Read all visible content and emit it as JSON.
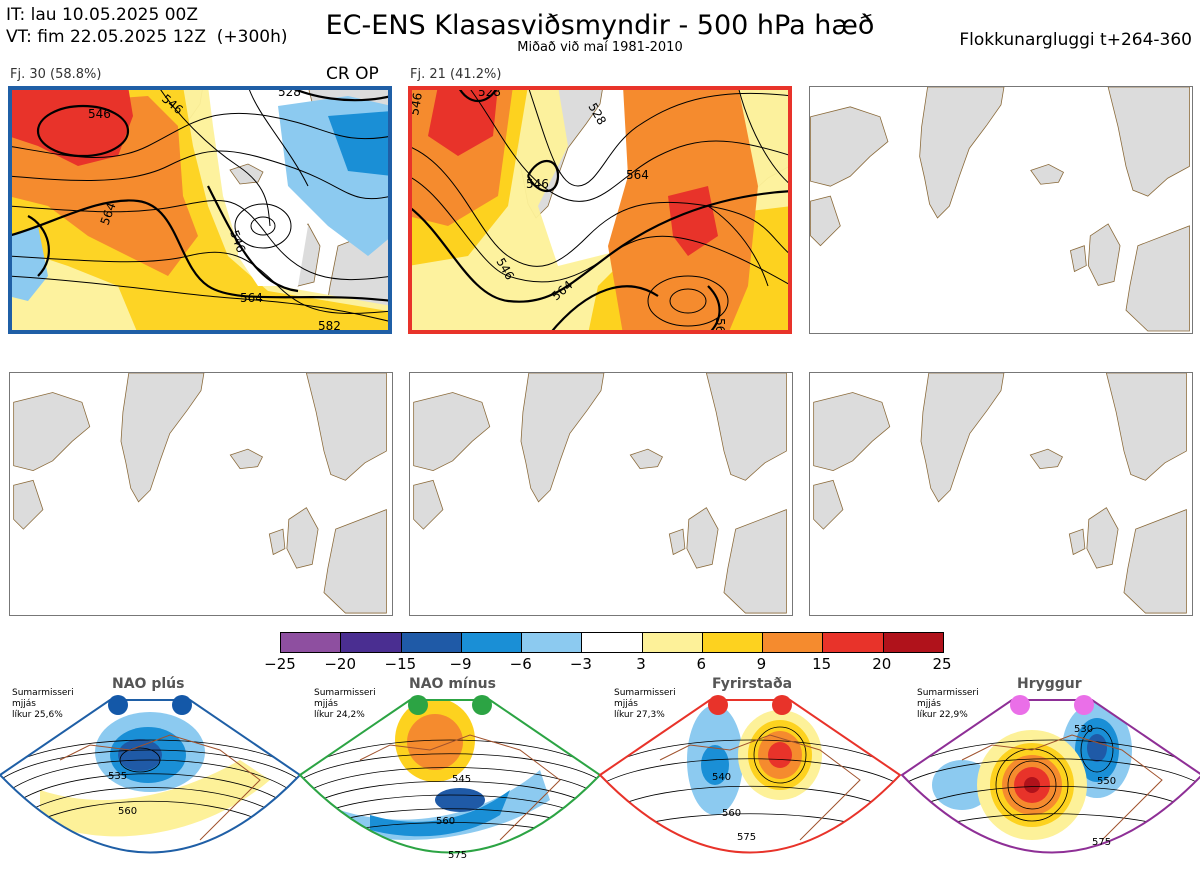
{
  "header": {
    "it_line": "IT: lau 10.05.2025 00Z",
    "vt_line": "VT: fim 22.05.2025 12Z  (+300h)",
    "title": "EC-ENS Klasasviðsmyndir - 500 hPa hæð",
    "subtitle": "Miðað við maí 1981-2010",
    "window": "Flokkunargluggi t+264-360"
  },
  "panels": [
    {
      "label": "Fj. 30 (58.8%)",
      "badge": "CR OP",
      "border": "#1f5fa6",
      "contours": [
        "546",
        "546",
        "528",
        "564",
        "546",
        "564",
        "582"
      ]
    },
    {
      "label": "Fj. 21 (41.2%)",
      "badge": "",
      "border": "#e8332a",
      "contours": [
        "546",
        "528",
        "528",
        "546",
        "564",
        "546",
        "564",
        "56"
      ]
    },
    {
      "label": "",
      "badge": "",
      "border": "",
      "contours": []
    },
    {
      "label": "",
      "badge": "",
      "border": "",
      "contours": []
    },
    {
      "label": "",
      "badge": "",
      "border": "",
      "contours": []
    },
    {
      "label": "",
      "badge": "",
      "border": "",
      "contours": []
    }
  ],
  "colorbar": {
    "ticks": [
      "−25",
      "−20",
      "−15",
      "−9",
      "−6",
      "−3",
      "3",
      "6",
      "9",
      "15",
      "20",
      "25"
    ],
    "colors": [
      "#8e4fa0",
      "#4a2e91",
      "#1f5aa7",
      "#1a8fd6",
      "#8ccaf0",
      "#ffffff",
      "#fdf199",
      "#fdd21f",
      "#f58b2e",
      "#e8332a",
      "#b0121b"
    ]
  },
  "regimes": [
    {
      "title": "NAO plús",
      "note": "Sumarmisseri\nmjjás\nlíkur 25,6%",
      "color": "#1f5fa6",
      "dot": "#1458a8",
      "labels": [
        "535",
        "560"
      ]
    },
    {
      "title": "NAO mínus",
      "note": "Sumarmisseri\nmjjás\nlíkur 24,2%",
      "color": "#2ca444",
      "dot": "#2ca444",
      "labels": [
        "545",
        "560",
        "575"
      ]
    },
    {
      "title": "Fyrirstaða",
      "note": "Sumarmisseri\nmjjás\nlíkur 27,3%",
      "color": "#e8332a",
      "dot": "#e8332a",
      "labels": [
        "540",
        "560",
        "575"
      ]
    },
    {
      "title": "Hryggur",
      "note": "Sumarmisseri\nmjjás\nlíkur 22,9%",
      "color": "#8e2f96",
      "dot": "#ea6fe8",
      "labels": [
        "530",
        "550",
        "575"
      ]
    }
  ]
}
